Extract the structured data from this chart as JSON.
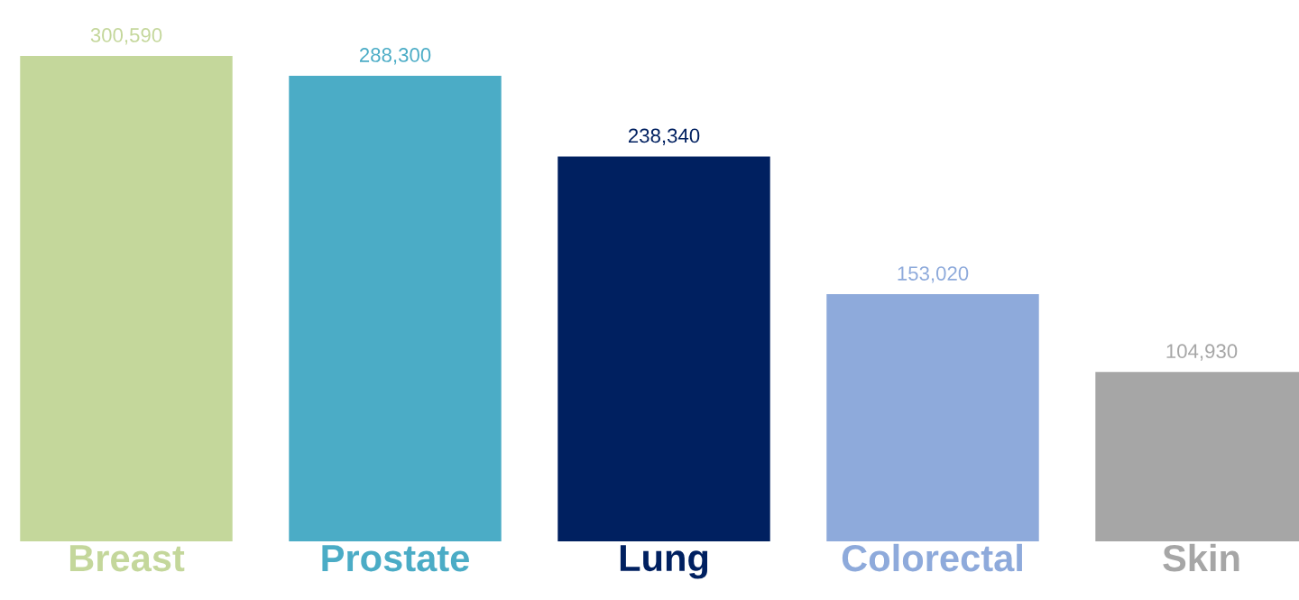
{
  "chart_data": {
    "type": "bar",
    "categories": [
      "Breast",
      "Prostate",
      "Lung",
      "Colorectal",
      "Skin"
    ],
    "values": [
      300590,
      288300,
      238340,
      153020,
      104930
    ],
    "colors": [
      "#c4d79b",
      "#4bacc6",
      "#002060",
      "#8eaadb",
      "#a6a6a6"
    ],
    "value_labels": [
      "300,590",
      "288,300",
      "238,340",
      "153,020",
      "104,930"
    ]
  }
}
